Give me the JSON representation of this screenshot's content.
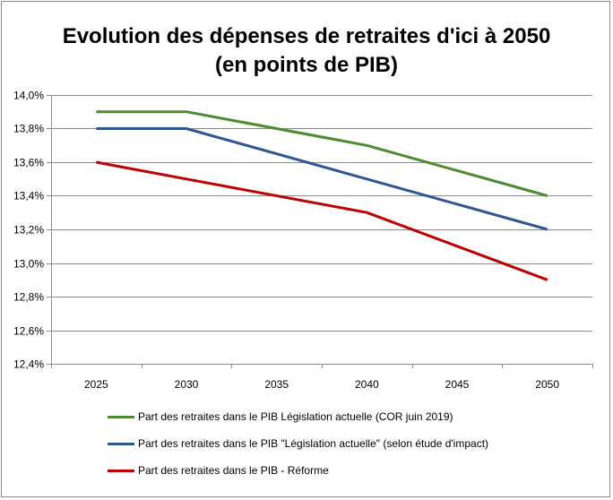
{
  "chart_data": {
    "type": "line",
    "title_line1": "Evolution des dépenses de retraites d'ici à 2050",
    "title_line2": "(en points de PIB)",
    "xlabel": "",
    "ylabel": "",
    "x": [
      2025,
      2030,
      2035,
      2040,
      2045,
      2050
    ],
    "x_tick_labels": [
      "2025",
      "2030",
      "2035",
      "2040",
      "2045",
      "2050"
    ],
    "ylim": [
      12.4,
      14.0
    ],
    "y_ticks": [
      12.4,
      12.6,
      12.8,
      13.0,
      13.2,
      13.4,
      13.6,
      13.8,
      14.0
    ],
    "y_tick_labels": [
      "12,4%",
      "12,6%",
      "12,8%",
      "13,0%",
      "13,2%",
      "13,4%",
      "13,6%",
      "13,8%",
      "14,0%"
    ],
    "grid": "horizontal",
    "legend_position": "bottom",
    "series": [
      {
        "name": "Part des retraites dans le PIB Législation actuelle (COR juin 2019)",
        "color": "#4e8b2f",
        "points": [
          [
            2025,
            13.9
          ],
          [
            2030,
            13.9
          ],
          [
            2040,
            13.7
          ],
          [
            2050,
            13.4
          ]
        ]
      },
      {
        "name": "Part des retraites dans le PIB \"Législation actuelle\" (selon étude d'impact)",
        "color": "#2f5597",
        "points": [
          [
            2025,
            13.8
          ],
          [
            2030,
            13.8
          ],
          [
            2040,
            13.5
          ],
          [
            2050,
            13.2
          ]
        ]
      },
      {
        "name": "Part des retraites dans le PIB - Réforme",
        "color": "#c00000",
        "points": [
          [
            2025,
            13.6
          ],
          [
            2030,
            13.5
          ],
          [
            2040,
            13.3
          ],
          [
            2050,
            12.9
          ]
        ]
      }
    ]
  }
}
